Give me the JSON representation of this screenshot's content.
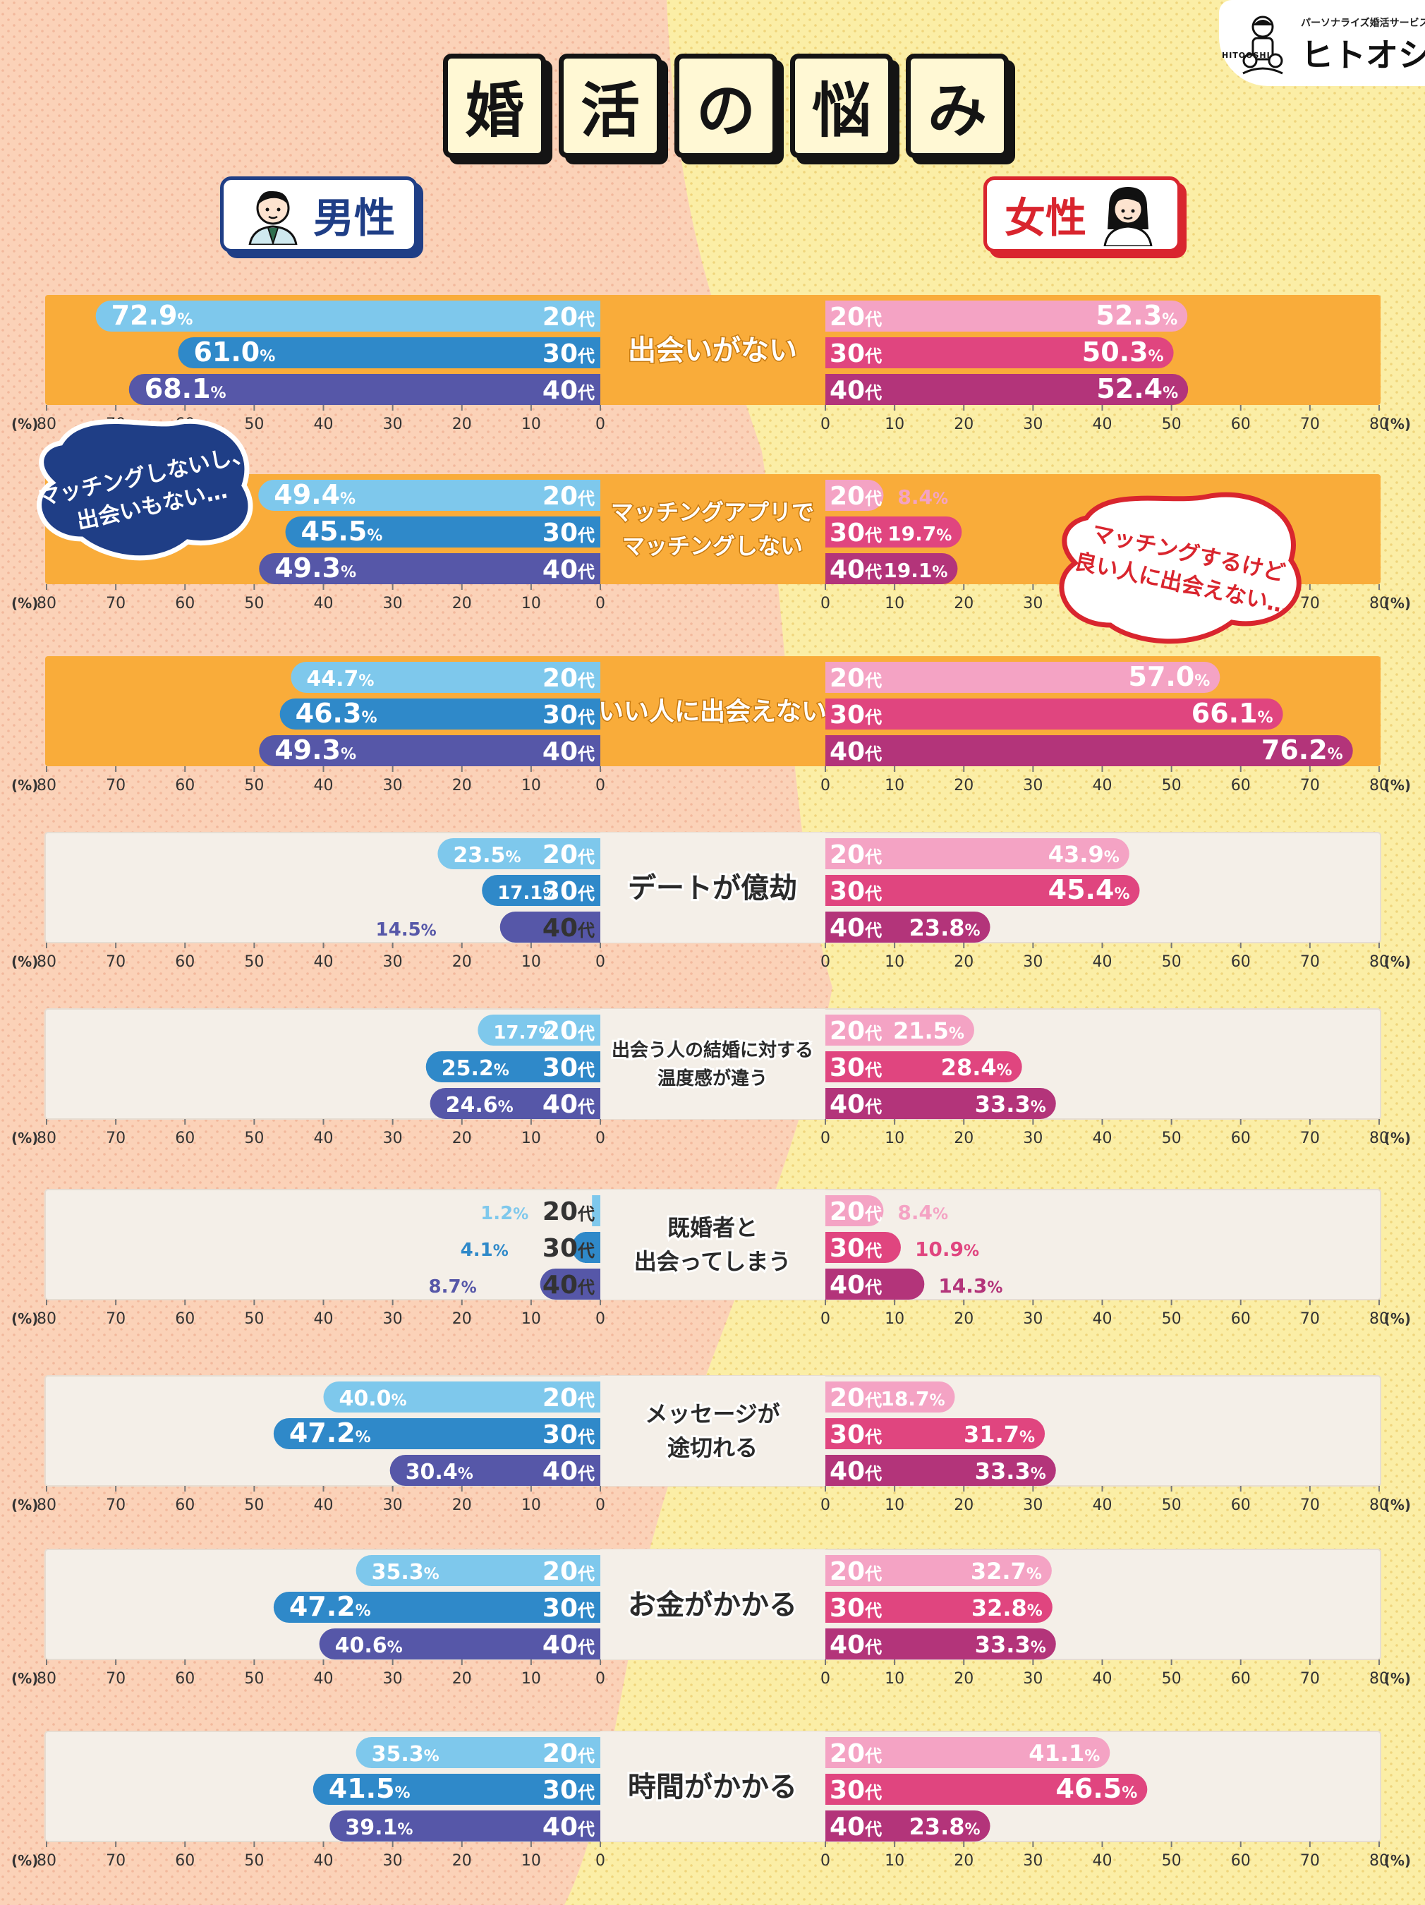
{
  "title_chars": [
    "婚",
    "活",
    "の",
    "悩",
    "み"
  ],
  "labels": {
    "male": "男性",
    "female": "女性"
  },
  "logo": {
    "sub": "パーソナライズ婚活サービス",
    "main": "ヒトオシ",
    "mark": "HITOOSHI"
  },
  "callouts": {
    "male": [
      "マッチングしないし、",
      "出会いもない…"
    ],
    "female": [
      "マッチングするけど",
      "良い人に出会えない…"
    ]
  },
  "chart_data": {
    "type": "bar",
    "orientation": "horizontal-mirrored",
    "age_groups": [
      "20代",
      "30代",
      "40代"
    ],
    "percent_unit": "%",
    "axis_unit": "(%)",
    "xlim": [
      0,
      80
    ],
    "xticks": [
      0,
      10,
      20,
      30,
      40,
      50,
      60,
      70,
      80
    ],
    "colors": {
      "male": [
        "#7ec8ec",
        "#2f89c9",
        "#5657a8"
      ],
      "female": [
        "#f4a3c4",
        "#e0457f",
        "#b3347a"
      ],
      "highlight_band": "#f9ac3a",
      "normal_band": "#f4efe8"
    },
    "categories": [
      {
        "label": [
          "出会いがない"
        ],
        "highlight": true,
        "male": [
          72.9,
          61.0,
          68.1
        ],
        "female": [
          52.3,
          50.3,
          52.4
        ]
      },
      {
        "label": [
          "マッチングアプリで",
          "マッチングしない"
        ],
        "highlight": true,
        "male": [
          49.4,
          45.5,
          49.3
        ],
        "female": [
          8.4,
          19.7,
          19.1
        ]
      },
      {
        "label": [
          "いい人に出会えない"
        ],
        "highlight": true,
        "male": [
          44.7,
          46.3,
          49.3
        ],
        "female": [
          57.0,
          66.1,
          76.2
        ]
      },
      {
        "label": [
          "デートが億劫"
        ],
        "highlight": false,
        "male": [
          23.5,
          17.1,
          14.5
        ],
        "female": [
          43.9,
          45.4,
          23.8
        ]
      },
      {
        "label": [
          "出会う人の結婚に対する",
          "温度感が違う"
        ],
        "highlight": false,
        "male": [
          17.7,
          25.2,
          24.6
        ],
        "female": [
          21.5,
          28.4,
          33.3
        ]
      },
      {
        "label": [
          "既婚者と",
          "出会ってしまう"
        ],
        "highlight": false,
        "male": [
          1.2,
          4.1,
          8.7
        ],
        "female": [
          8.4,
          10.9,
          14.3
        ]
      },
      {
        "label": [
          "メッセージが",
          "途切れる"
        ],
        "highlight": false,
        "male": [
          40.0,
          47.2,
          30.4
        ],
        "female": [
          18.7,
          31.7,
          33.3
        ]
      },
      {
        "label": [
          "お金がかかる"
        ],
        "highlight": false,
        "male": [
          35.3,
          47.2,
          40.6
        ],
        "female": [
          32.7,
          32.8,
          33.3
        ]
      },
      {
        "label": [
          "時間がかかる"
        ],
        "highlight": false,
        "male": [
          35.3,
          41.5,
          39.1
        ],
        "female": [
          41.1,
          46.5,
          23.8
        ]
      }
    ]
  }
}
